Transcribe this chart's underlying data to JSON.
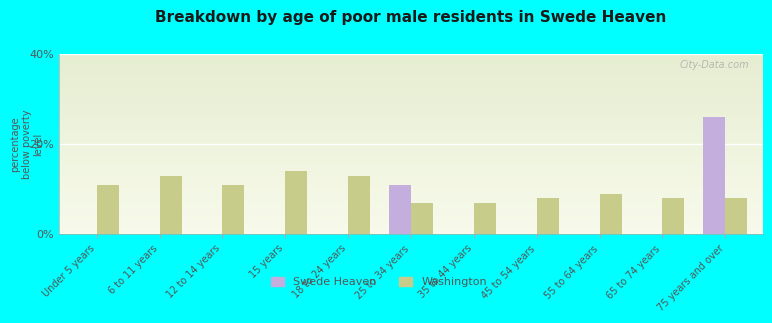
{
  "title": "Breakdown by age of poor male residents in Swede Heaven",
  "categories": [
    "Under 5 years",
    "6 to 11 years",
    "12 to 14 years",
    "15 years",
    "18 to 24 years",
    "25 to 34 years",
    "35 to 44 years",
    "45 to 54 years",
    "55 to 64 years",
    "65 to 74 years",
    "75 years and over"
  ],
  "swede_heaven": [
    0,
    0,
    0,
    0,
    0,
    11.0,
    0,
    0,
    0,
    0,
    26.0
  ],
  "washington": [
    11.0,
    13.0,
    11.0,
    14.0,
    13.0,
    7.0,
    7.0,
    8.0,
    9.0,
    8.0,
    8.0
  ],
  "swede_heaven_color": "#c4aedd",
  "washington_color": "#c8cc8a",
  "ylabel": "percentage\nbelow poverty\nlevel",
  "ylim": [
    0,
    40
  ],
  "yticks": [
    0,
    20,
    40
  ],
  "ytick_labels": [
    "0%",
    "20%",
    "40%"
  ],
  "bg_color": "#00ffff",
  "title_color": "#1a1a1a",
  "axis_color": "#555555",
  "legend_swede": "Swede Heaven",
  "legend_washington": "Washington",
  "bar_width": 0.35,
  "watermark": "City-Data.com"
}
